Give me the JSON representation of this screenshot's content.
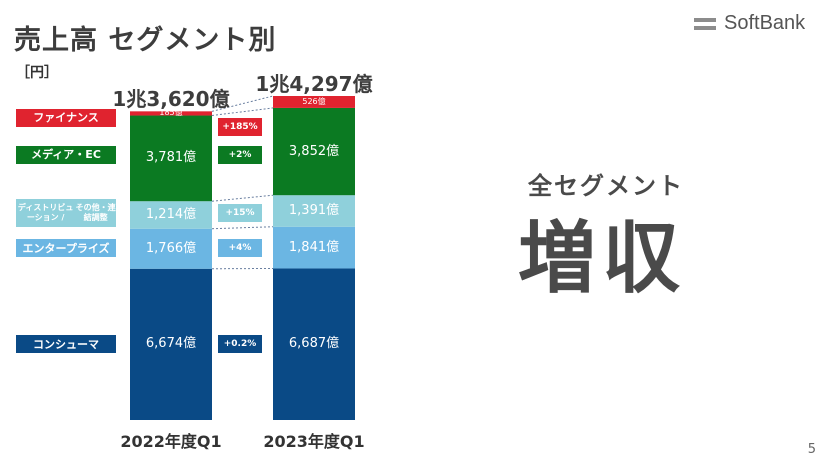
{
  "slide": {
    "title": "売上高 セグメント別",
    "unit": "［円］",
    "logo_text": "SoftBank",
    "page_number": "5",
    "headline_sub": "全セグメント",
    "headline_main": "増収"
  },
  "chart_data": {
    "type": "stacked-bar",
    "categories": [
      "2022年度Q1",
      "2023年度Q1"
    ],
    "totals": [
      "1兆3,620億",
      "1兆4,297億"
    ],
    "unit_label": "億",
    "series": [
      {
        "name": "コンシューマ",
        "color": "#0a4a86",
        "values": [
          6674,
          6687
        ],
        "labels": [
          "6,674億",
          "6,687億"
        ],
        "growth": "+0.2%",
        "growth_color": "#0a4a86",
        "legend_color": "#0a4a86"
      },
      {
        "name": "エンタープライズ",
        "color": "#6bb6e3",
        "values": [
          1766,
          1841
        ],
        "labels": [
          "1,766億",
          "1,841億"
        ],
        "growth": "+4%",
        "growth_color": "#6bb6e3",
        "legend_color": "#6bb6e3"
      },
      {
        "name": "ディストリビューション／その他・連結調整",
        "color": "#8fd0db",
        "values": [
          1214,
          1391
        ],
        "labels": [
          "1,214億",
          "1,391億"
        ],
        "growth": "+15%",
        "growth_color": "#8fd0db",
        "legend_color": "#8fd0db"
      },
      {
        "name": "メディア・EC",
        "color": "#0b7a22",
        "values": [
          3781,
          3852
        ],
        "labels": [
          "3,781億",
          "3,852億"
        ],
        "growth": "+2%",
        "growth_color": "#0b7a22",
        "legend_color": "#0b7a22"
      },
      {
        "name": "ファイナンス",
        "color": "#e0232f",
        "values": [
          185,
          526
        ],
        "labels": [
          "185億",
          "526億"
        ],
        "growth": "+185%",
        "growth_color": "#e0232f",
        "legend_color": "#e0232f"
      }
    ],
    "legend_lines": [
      [
        "コンシューマ"
      ],
      [
        "エンタープライズ"
      ],
      [
        "ディストリビューション /",
        "その他・連結調整"
      ],
      [
        "メディア・EC"
      ],
      [
        "ファイナンス"
      ]
    ]
  }
}
